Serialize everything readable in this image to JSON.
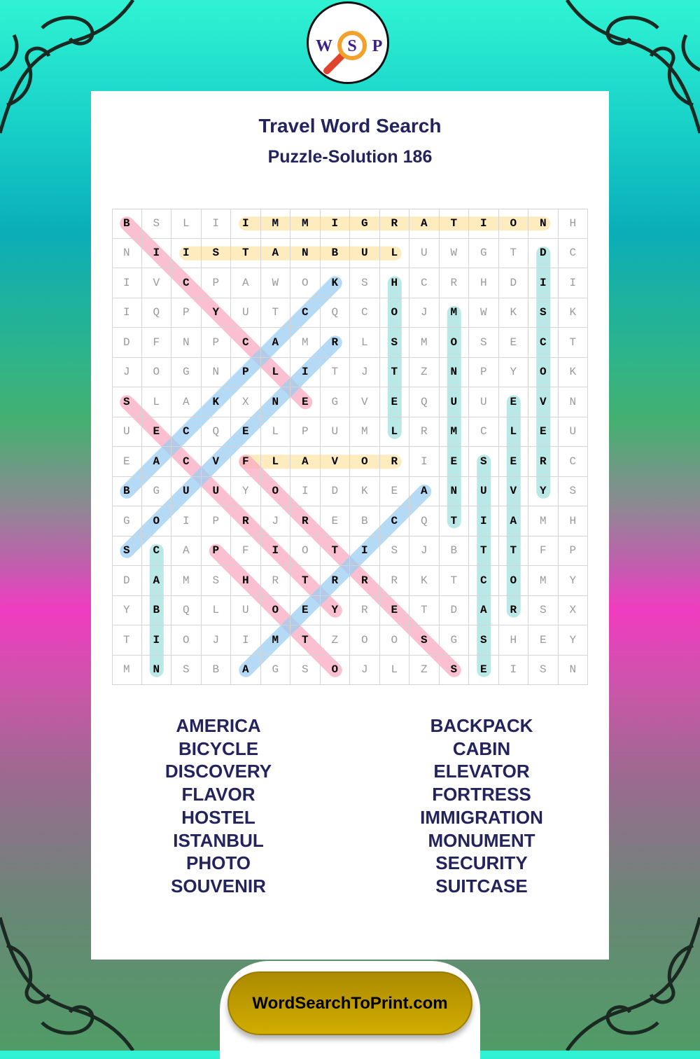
{
  "logo": {
    "letters": [
      "W",
      "S",
      "P"
    ],
    "icon": "magnifier-icon"
  },
  "title": "Travel Word Search",
  "subtitle": "Puzzle-Solution 186",
  "grid": {
    "rows": [
      "BSLIIMMIGRATIONH",
      "NIISTANBULUWGTDC",
      "IVCPAWOKSHCRHDII",
      "IQPYUTCQCOJMWKSK",
      "DFNPCAMRLSMOSECT",
      "JOGNPLITJTZNPYOK",
      "SLAKXNEGVEQUUEVN",
      "UECQELPUMLRMCLEU",
      "EACVFLAVORIESERC",
      "BGUUYOIDKEANUVYS",
      "GOIPRJREBCQTIAMH",
      "SCAPFIOTISJBTTFP",
      "DAMSHRTRRRKTCOMY",
      "YBQLUOEYRETDARSX",
      "TIOJIMTZOOSGSHEY",
      "MNSBAGSOJLZSEISN"
    ]
  },
  "solutions": [
    {
      "word": "IMMIGRATION",
      "start": [
        0,
        4
      ],
      "end": [
        0,
        14
      ],
      "color": "yellow"
    },
    {
      "word": "ISTANBUL",
      "start": [
        1,
        2
      ],
      "end": [
        1,
        9
      ],
      "color": "yellow"
    },
    {
      "word": "FLAVOR",
      "start": [
        8,
        4
      ],
      "end": [
        8,
        9
      ],
      "color": "yellow"
    },
    {
      "word": "BICYCLE",
      "start": [
        0,
        0
      ],
      "end": [
        6,
        6
      ],
      "color": "pink"
    },
    {
      "word": "SECURITY",
      "start": [
        6,
        0
      ],
      "end": [
        13,
        7
      ],
      "color": "pink"
    },
    {
      "word": "FORTRESS",
      "start": [
        8,
        4
      ],
      "end": [
        15,
        11
      ],
      "color": "pink"
    },
    {
      "word": "PHOTO",
      "start": [
        11,
        3
      ],
      "end": [
        15,
        7
      ],
      "color": "pink"
    },
    {
      "word": "BACKPACK",
      "start": [
        9,
        0
      ],
      "end": [
        2,
        7
      ],
      "color": "blue"
    },
    {
      "word": "SOUVENIR",
      "start": [
        11,
        0
      ],
      "end": [
        4,
        7
      ],
      "color": "blue"
    },
    {
      "word": "AMERICA",
      "start": [
        15,
        4
      ],
      "end": [
        9,
        10
      ],
      "color": "blue"
    },
    {
      "word": "HOSTEL",
      "start": [
        2,
        9
      ],
      "end": [
        7,
        9
      ],
      "color": "teal"
    },
    {
      "word": "MONUMENT",
      "start": [
        3,
        11
      ],
      "end": [
        10,
        11
      ],
      "color": "teal"
    },
    {
      "word": "DISCOVERY",
      "start": [
        1,
        14
      ],
      "end": [
        9,
        14
      ],
      "color": "teal"
    },
    {
      "word": "ELEVATOR",
      "start": [
        6,
        13
      ],
      "end": [
        13,
        13
      ],
      "color": "teal"
    },
    {
      "word": "SUITCASE",
      "start": [
        8,
        12
      ],
      "end": [
        15,
        12
      ],
      "color": "teal"
    },
    {
      "word": "CABIN",
      "start": [
        11,
        1
      ],
      "end": [
        15,
        1
      ],
      "color": "teal"
    }
  ],
  "colors": {
    "yellow": "#fde6a8",
    "pink": "#f8a9c0",
    "blue": "#9ccdf2",
    "teal": "#a3e0df",
    "title": "#23235e",
    "footer": "#c9a600"
  },
  "word_list": {
    "left": [
      "AMERICA",
      "BICYCLE",
      "DISCOVERY",
      "FLAVOR",
      "HOSTEL",
      "ISTANBUL",
      "PHOTO",
      "SOUVENIR"
    ],
    "right": [
      "BACKPACK",
      "CABIN",
      "ELEVATOR",
      "FORTRESS",
      "IMMIGRATION",
      "MONUMENT",
      "SECURITY",
      "SUITCASE"
    ]
  },
  "footer": "WordSearchToPrint.com"
}
